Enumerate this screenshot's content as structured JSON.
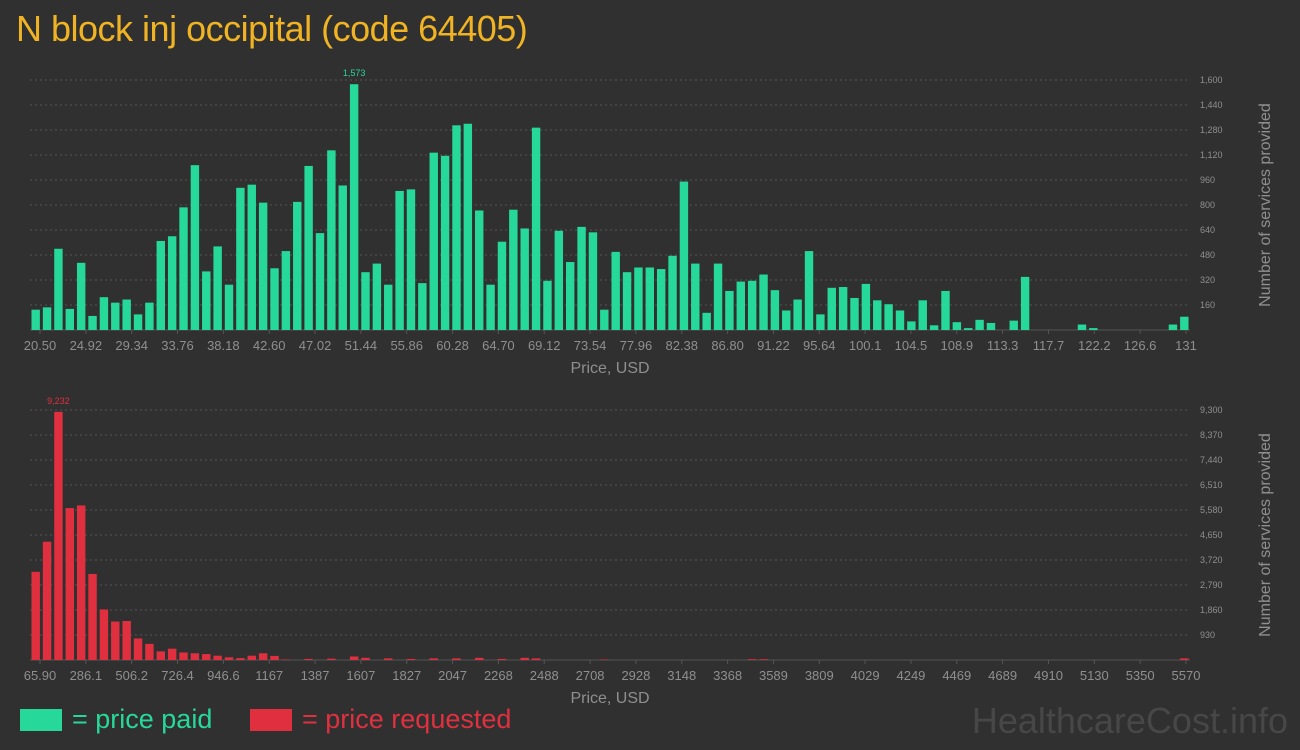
{
  "title": "N block inj occipital (code 64405)",
  "colors": {
    "paid": "#26d99a",
    "requested": "#e03040",
    "title": "#f0b323",
    "axis_text": "#8f8f8f",
    "background": "#303030",
    "grid": "#555555"
  },
  "legend": {
    "paid_label": "= price paid",
    "requested_label": "= price requested"
  },
  "watermark": "HealthcareCost.info",
  "chart_data": [
    {
      "type": "bar",
      "xlabel": "Price, USD",
      "ylabel": "Number of services provided",
      "ylim": [
        0,
        1600
      ],
      "yticks": [
        160,
        320,
        480,
        640,
        800,
        960,
        1120,
        1280,
        1440,
        1600
      ],
      "ytick_labels": [
        "160",
        "320",
        "480",
        "640",
        "800",
        "960",
        "1,120",
        "1,280",
        "1,440",
        "1,600"
      ],
      "xtick_labels": [
        "20.50",
        "24.92",
        "29.34",
        "33.76",
        "38.18",
        "42.60",
        "47.02",
        "51.44",
        "55.86",
        "60.28",
        "64.70",
        "69.12",
        "73.54",
        "77.96",
        "82.38",
        "86.80",
        "91.22",
        "95.64",
        "100.1",
        "104.5",
        "108.9",
        "113.3",
        "117.7",
        "122.2",
        "126.6",
        "131"
      ],
      "peak_label": "1,573",
      "grid": true,
      "series": [
        {
          "values": [
            130,
            145,
            520,
            135,
            430,
            90,
            210,
            175,
            195,
            100,
            175,
            570,
            600,
            785,
            1055,
            375,
            535,
            290,
            910,
            930,
            815,
            395,
            505,
            820,
            1050,
            620,
            1150,
            925,
            1573,
            370,
            425,
            290,
            890,
            900,
            300,
            1135,
            1115,
            1310,
            1320,
            765,
            290,
            565,
            770,
            650,
            1295,
            315,
            635,
            435,
            660,
            625,
            130,
            500,
            370,
            400,
            400,
            390,
            475,
            950,
            425,
            110,
            425,
            250,
            310,
            315,
            355,
            255,
            125,
            195,
            505,
            100,
            270,
            275,
            205,
            295,
            190,
            165,
            125,
            55,
            190,
            30,
            250,
            50,
            12,
            65,
            45,
            0,
            60,
            340,
            0,
            0,
            0,
            0,
            35,
            12,
            0,
            0,
            0,
            0,
            0,
            0,
            35,
            85
          ]
        }
      ]
    },
    {
      "type": "bar",
      "xlabel": "Price, USD",
      "ylabel": "Number of services provided",
      "ylim": [
        0,
        9300
      ],
      "yticks": [
        930,
        1860,
        2790,
        3720,
        4650,
        5580,
        6510,
        7440,
        8370,
        9300
      ],
      "ytick_labels": [
        "930",
        "1,860",
        "2,790",
        "3,720",
        "4,650",
        "5,580",
        "6,510",
        "7,440",
        "8,370",
        "9,300"
      ],
      "xtick_labels": [
        "65.90",
        "286.1",
        "506.2",
        "726.4",
        "946.6",
        "1167",
        "1387",
        "1607",
        "1827",
        "2047",
        "2268",
        "2488",
        "2708",
        "2928",
        "3148",
        "3368",
        "3589",
        "3809",
        "4029",
        "4249",
        "4469",
        "4689",
        "4910",
        "5130",
        "5350",
        "5570"
      ],
      "peak_label": "9,232",
      "grid": true,
      "series": [
        {
          "values": [
            3280,
            4400,
            9232,
            5650,
            5750,
            3200,
            1880,
            1430,
            1450,
            800,
            600,
            320,
            420,
            280,
            250,
            220,
            160,
            100,
            70,
            160,
            250,
            150,
            20,
            0,
            40,
            0,
            50,
            0,
            130,
            80,
            0,
            60,
            0,
            40,
            0,
            60,
            0,
            60,
            0,
            80,
            0,
            40,
            0,
            80,
            60,
            0,
            0,
            0,
            0,
            0,
            20,
            0,
            0,
            0,
            0,
            0,
            0,
            0,
            0,
            0,
            0,
            0,
            0,
            30,
            30,
            0,
            0,
            0,
            0,
            0,
            0,
            0,
            0,
            0,
            0,
            0,
            0,
            0,
            0,
            0,
            0,
            0,
            0,
            0,
            0,
            0,
            0,
            0,
            0,
            0,
            0,
            0,
            0,
            0,
            0,
            0,
            0,
            0,
            0,
            0,
            0,
            60
          ]
        }
      ]
    }
  ]
}
